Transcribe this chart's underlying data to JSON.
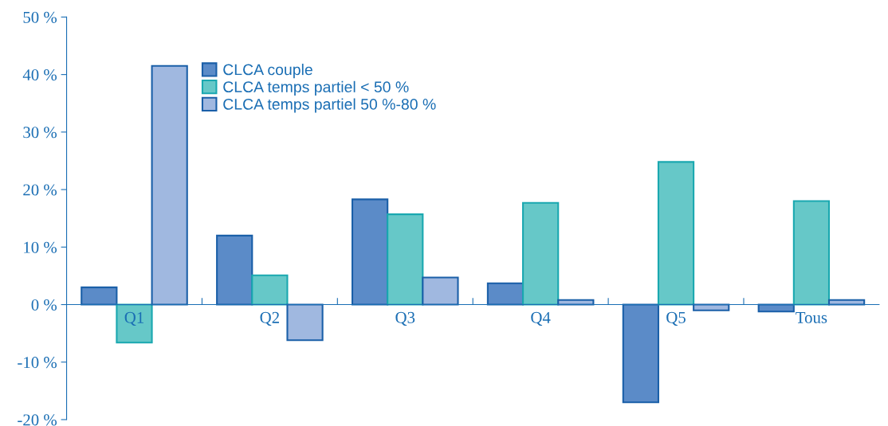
{
  "chart_data": {
    "type": "bar",
    "categories": [
      "Q1",
      "Q2",
      "Q3",
      "Q4",
      "Q5",
      "Tous"
    ],
    "series": [
      {
        "name": "CLCA couple",
        "color": "#5b8bc8",
        "values": [
          3.0,
          12.0,
          18.3,
          3.7,
          -17.0,
          -1.2
        ]
      },
      {
        "name": "CLCA temps partiel < 50 %",
        "color": "#66c8c8",
        "values": [
          -6.6,
          5.1,
          15.7,
          17.7,
          24.8,
          18.0
        ]
      },
      {
        "name": "CLCA temps partiel 50 %-80 %",
        "color": "#a0b8e0",
        "values": [
          41.5,
          -6.2,
          4.7,
          0.8,
          -1.0,
          0.8
        ]
      }
    ],
    "ylim": [
      -20,
      50
    ],
    "yticks": [
      {
        "value": -20,
        "label": "-20 %"
      },
      {
        "value": -10,
        "label": "-10 %"
      },
      {
        "value": 0,
        "label": "0 %"
      },
      {
        "value": 10,
        "label": "10 %"
      },
      {
        "value": 20,
        "label": "20 %"
      },
      {
        "value": 30,
        "label": "30 %"
      },
      {
        "value": 40,
        "label": "40 %"
      },
      {
        "value": 50,
        "label": "50 %"
      }
    ],
    "legend": "top left",
    "grid": false
  }
}
